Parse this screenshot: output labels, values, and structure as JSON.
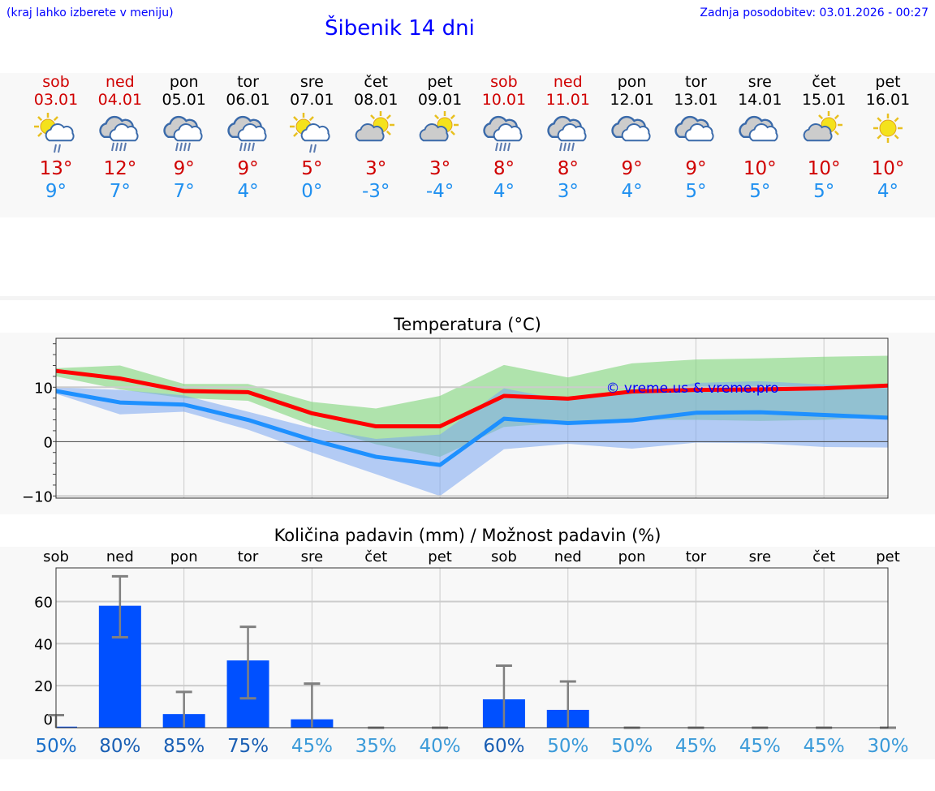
{
  "header": {
    "hint": "(kraj lahko izberete v meniju)",
    "title": "Šibenik 14 dni",
    "updated": "Zadnja posodobitev: 03.01.2026 - 00:27"
  },
  "days": [
    {
      "name": "sob",
      "date": "03.01",
      "weekend": true,
      "icon": "sun-cloud-rain-icon",
      "max": "13°",
      "min": "9°"
    },
    {
      "name": "ned",
      "date": "04.01",
      "weekend": true,
      "icon": "cloud-rain-icon",
      "max": "12°",
      "min": "7°"
    },
    {
      "name": "pon",
      "date": "05.01",
      "weekend": false,
      "icon": "cloud-rain-icon",
      "max": "9°",
      "min": "7°"
    },
    {
      "name": "tor",
      "date": "06.01",
      "weekend": false,
      "icon": "cloud-rain-icon",
      "max": "9°",
      "min": "4°"
    },
    {
      "name": "sre",
      "date": "07.01",
      "weekend": false,
      "icon": "sun-cloud-rain-icon",
      "max": "5°",
      "min": "0°"
    },
    {
      "name": "čet",
      "date": "08.01",
      "weekend": false,
      "icon": "partly-cloudy-icon",
      "max": "3°",
      "min": "-3°"
    },
    {
      "name": "pet",
      "date": "09.01",
      "weekend": false,
      "icon": "partly-cloudy-icon",
      "max": "3°",
      "min": "-4°"
    },
    {
      "name": "sob",
      "date": "10.01",
      "weekend": true,
      "icon": "cloud-rain-icon",
      "max": "8°",
      "min": "4°"
    },
    {
      "name": "ned",
      "date": "11.01",
      "weekend": true,
      "icon": "cloud-rain-icon",
      "max": "8°",
      "min": "3°"
    },
    {
      "name": "pon",
      "date": "12.01",
      "weekend": false,
      "icon": "cloudy-icon",
      "max": "9°",
      "min": "4°"
    },
    {
      "name": "tor",
      "date": "13.01",
      "weekend": false,
      "icon": "cloudy-icon",
      "max": "9°",
      "min": "5°"
    },
    {
      "name": "sre",
      "date": "14.01",
      "weekend": false,
      "icon": "cloudy-icon",
      "max": "10°",
      "min": "5°"
    },
    {
      "name": "čet",
      "date": "15.01",
      "weekend": false,
      "icon": "partly-cloudy-icon",
      "max": "10°",
      "min": "5°"
    },
    {
      "name": "pet",
      "date": "16.01",
      "weekend": false,
      "icon": "sunny-icon",
      "max": "10°",
      "min": "4°"
    }
  ],
  "chart_data": [
    {
      "type": "line",
      "title": "Temperatura (°C)",
      "ylim": [
        -10.4,
        19
      ],
      "yticks": [
        "10",
        "0",
        "−10"
      ],
      "ytick_values": [
        10,
        0,
        -10
      ],
      "watermark": "© vreme.us & vreme.pro",
      "series": [
        {
          "name": "max",
          "color": "#ff0000",
          "values": [
            13,
            11.6,
            9.3,
            9.1,
            5.2,
            2.8,
            2.8,
            8.4,
            7.9,
            9.2,
            9.5,
            9.6,
            9.8,
            10.3
          ]
        },
        {
          "name": "min",
          "color": "#1e90ff",
          "values": [
            9.3,
            7.2,
            6.8,
            4,
            0.3,
            -2.8,
            -4.3,
            4.2,
            3.4,
            3.9,
            5.3,
            5.4,
            4.9,
            4.4
          ]
        }
      ],
      "bands": [
        {
          "name": "max-range",
          "color": "#7fd67a",
          "upper": [
            13.5,
            14,
            10.6,
            10.6,
            7.3,
            6.1,
            8.4,
            14.1,
            11.8,
            14.4,
            15.1,
            15.3,
            15.6,
            15.8
          ],
          "lower": [
            12,
            9.6,
            8,
            7.5,
            3,
            -0.5,
            -2.8,
            2.7,
            3.5,
            4,
            4,
            3.8,
            4,
            4.5
          ]
        },
        {
          "name": "min-range",
          "color": "#7aa6f0",
          "upper": [
            10,
            9.5,
            8.5,
            5.5,
            2.5,
            0.5,
            1.3,
            9.8,
            7.5,
            9,
            10.8,
            11.1,
            10.5,
            10
          ],
          "lower": [
            8.8,
            5,
            5.5,
            2.2,
            -2,
            -6,
            -10,
            -1.4,
            -0.4,
            -1.3,
            -0.2,
            -0.3,
            -1,
            -1.1
          ]
        }
      ]
    },
    {
      "type": "bar",
      "title": "Količina padavin (mm) / Možnost padavin (%)",
      "ylim": [
        0,
        76
      ],
      "yticks": [
        "60",
        "40",
        "20",
        "0"
      ],
      "ytick_values": [
        60,
        40,
        20,
        0
      ],
      "categories": [
        "sob",
        "ned",
        "pon",
        "tor",
        "sre",
        "čet",
        "pet",
        "sob",
        "ned",
        "pon",
        "tor",
        "sre",
        "čet",
        "pet"
      ],
      "values": [
        0.5,
        58,
        6.5,
        32,
        4,
        0,
        0,
        13.5,
        8.5,
        0,
        0,
        0,
        0,
        0
      ],
      "err_low": [
        0,
        43,
        0,
        14,
        0,
        0,
        0,
        0,
        0,
        0,
        0,
        0,
        0,
        0
      ],
      "err_high": [
        6,
        72,
        17,
        48,
        21,
        0,
        0,
        29.5,
        22,
        0,
        0,
        0,
        0,
        0
      ],
      "probability": [
        "50%",
        "80%",
        "85%",
        "75%",
        "45%",
        "35%",
        "40%",
        "60%",
        "50%",
        "50%",
        "45%",
        "45%",
        "45%",
        "30%"
      ],
      "probability_colors": [
        "#1a6fc9",
        "#1a5fb4",
        "#1a5fb4",
        "#1a5fb4",
        "#3a9ad9",
        "#3a9ad9",
        "#3a9ad9",
        "#1a5fb4",
        "#3a9ad9",
        "#3a9ad9",
        "#3a9ad9",
        "#3a9ad9",
        "#3a9ad9",
        "#3a9ad9"
      ],
      "bar_color": "#0050ff"
    }
  ]
}
